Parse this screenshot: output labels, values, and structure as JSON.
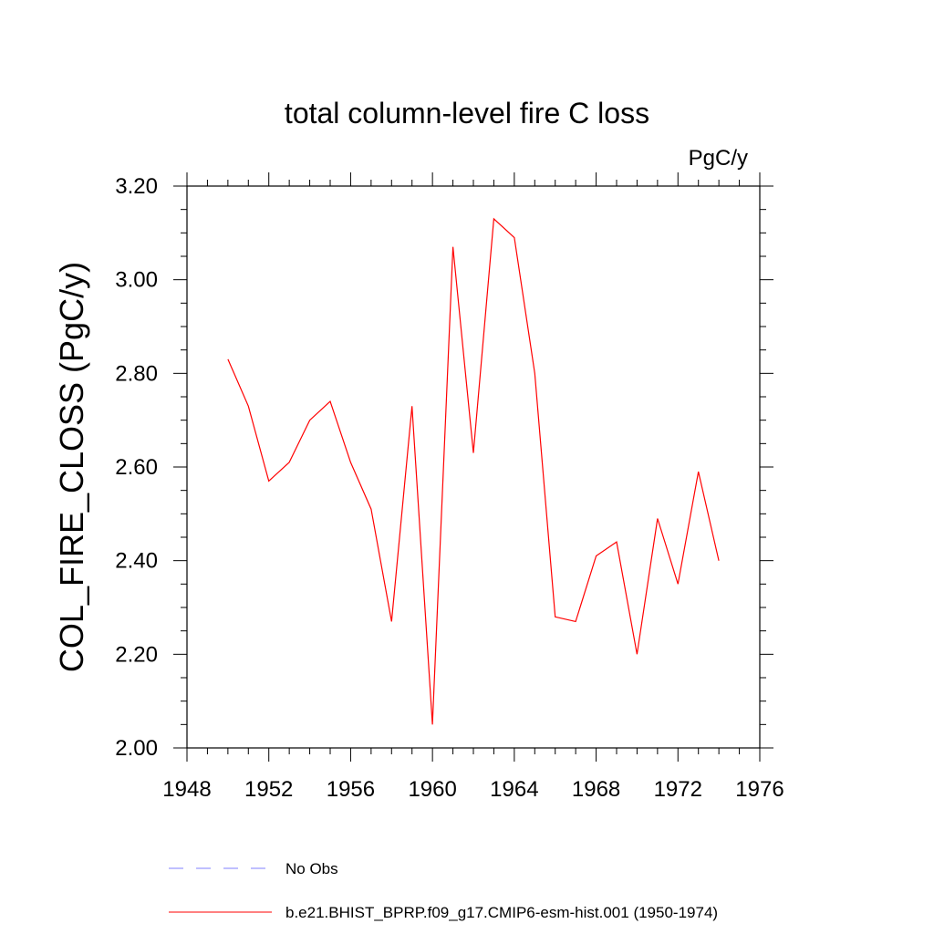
{
  "chart_data": {
    "type": "line",
    "title": "total column-level fire C loss",
    "units_label": "PgC/y",
    "ylabel": "COL_FIRE_CLOSS  (PgC/y)",
    "xlabel": "",
    "xlim": [
      1948,
      1976
    ],
    "ylim": [
      2.0,
      3.2
    ],
    "x_ticks": [
      1948,
      1952,
      1956,
      1960,
      1964,
      1968,
      1972,
      1976
    ],
    "y_ticks": [
      "2.00",
      "2.20",
      "2.40",
      "2.60",
      "2.80",
      "3.00",
      "3.20"
    ],
    "grid": false,
    "legend_placement": "bottom",
    "legend": [
      {
        "label": "No Obs",
        "style": "dashed",
        "color": "#8080ff"
      },
      {
        "label": "b.e21.BHIST_BPRP.f09_g17.CMIP6-esm-hist.001 (1950-1974)",
        "style": "solid",
        "color": "#ff0000"
      }
    ],
    "series": [
      {
        "color": "#ff0000",
        "x": [
          1950,
          1951,
          1952,
          1953,
          1954,
          1955,
          1956,
          1957,
          1958,
          1959,
          1960,
          1961,
          1962,
          1963,
          1964,
          1965,
          1966,
          1967,
          1968,
          1969,
          1970,
          1971,
          1972,
          1973,
          1974
        ],
        "values": [
          2.83,
          2.73,
          2.57,
          2.61,
          2.7,
          2.74,
          2.61,
          2.51,
          2.27,
          2.73,
          2.05,
          3.07,
          2.63,
          3.13,
          3.09,
          2.8,
          2.28,
          2.27,
          2.41,
          2.44,
          2.2,
          2.49,
          2.35,
          2.59,
          2.4
        ]
      }
    ]
  }
}
